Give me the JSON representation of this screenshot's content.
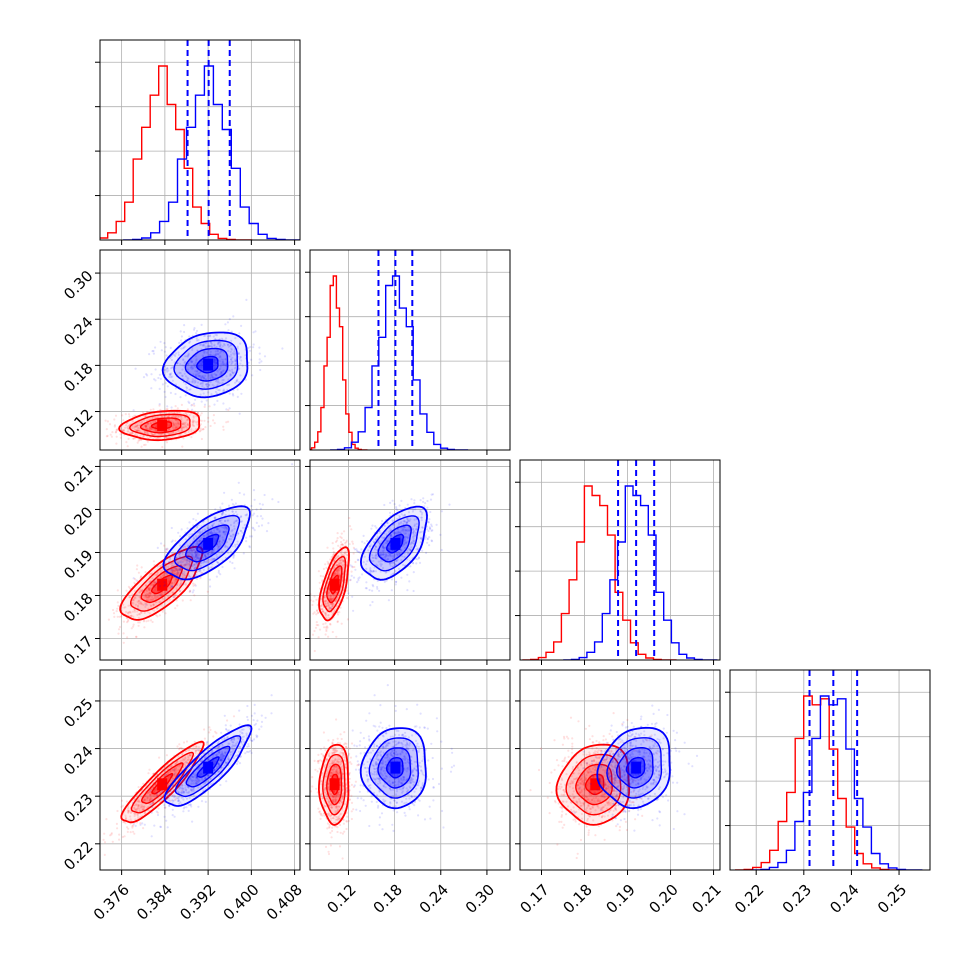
{
  "figure": {
    "type": "corner-plot",
    "colors": {
      "sample_a": "#ff0000",
      "sample_b": "#0000ff",
      "grid": "#b0b0b0"
    }
  },
  "chart_data": {
    "type": "corner",
    "parameters": [
      {
        "range": [
          0.372,
          0.409
        ],
        "ticks": [
          0.376,
          0.384,
          0.392,
          0.4,
          0.408
        ],
        "tick_labels": [
          "0.376",
          "0.384",
          "0.392",
          "0.400",
          "0.408"
        ]
      },
      {
        "range": [
          0.07,
          0.33
        ],
        "ticks": [
          0.12,
          0.18,
          0.24,
          0.3
        ],
        "tick_labels": [
          "0.12",
          "0.18",
          "0.24",
          "0.30"
        ]
      },
      {
        "range": [
          0.165,
          0.2115
        ],
        "ticks": [
          0.17,
          0.18,
          0.19,
          0.2,
          0.21
        ],
        "tick_labels": [
          "0.17",
          "0.18",
          "0.19",
          "0.20",
          "0.21"
        ]
      },
      {
        "range": [
          0.2145,
          0.2565
        ],
        "ticks": [
          0.22,
          0.23,
          0.24,
          0.25
        ],
        "tick_labels": [
          "0.22",
          "0.23",
          "0.24",
          "0.25"
        ]
      }
    ],
    "series": [
      {
        "color": "#ff0000",
        "mean": [
          0.3835,
          0.102,
          0.1825,
          0.2325
        ],
        "std": [
          0.0037,
          0.0095,
          0.0042,
          0.0042
        ],
        "corr": [
          [
            1,
            0.2,
            0.75,
            0.9
          ],
          [
            0.2,
            1,
            0.6,
            0.05
          ],
          [
            0.75,
            0.6,
            1,
            0.1
          ],
          [
            0.9,
            0.05,
            0.1,
            1
          ]
        ]
      },
      {
        "color": "#0000ff",
        "mean": [
          0.392,
          0.181,
          0.192,
          0.236
        ],
        "std": [
          0.0039,
          0.021,
          0.0042,
          0.0042
        ],
        "corr": [
          [
            1,
            0.15,
            0.65,
            0.85
          ],
          [
            0.15,
            1,
            0.55,
            0.05
          ],
          [
            0.65,
            0.55,
            1,
            0.15
          ],
          [
            0.85,
            0.05,
            0.15,
            1
          ]
        ]
      }
    ],
    "quantiles_param": [
      [
        0.3882,
        0.3921,
        0.396
      ],
      [
        0.159,
        0.181,
        0.203
      ],
      [
        0.1878,
        0.192,
        0.1962
      ],
      [
        0.2312,
        0.2362,
        0.2412
      ]
    ],
    "quantile_color": "#0000ff",
    "contour_levels_sigma": [
      0.5,
      1.0,
      1.5,
      2.0
    ],
    "grid": true
  }
}
